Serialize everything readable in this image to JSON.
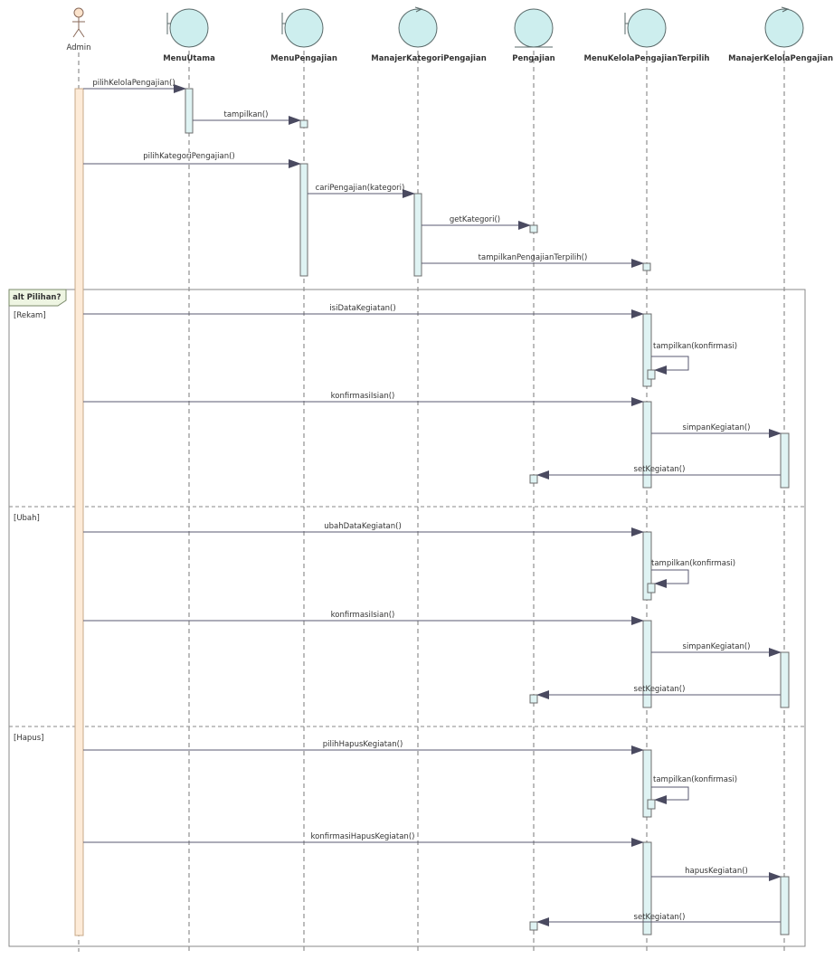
{
  "diagram": {
    "participants": [
      {
        "id": "admin",
        "label": "Admin",
        "kind": "actor"
      },
      {
        "id": "menuutama",
        "label": "MenuUtama",
        "kind": "boundary"
      },
      {
        "id": "menupengajian",
        "label": "MenuPengajian",
        "kind": "boundary"
      },
      {
        "id": "manajerkategori",
        "label": "ManajerKategoriPengajian",
        "kind": "control"
      },
      {
        "id": "pengajian",
        "label": "Pengajian",
        "kind": "entity"
      },
      {
        "id": "menukelola",
        "label": "MenuKelolaPengajianTerpilih",
        "kind": "boundary"
      },
      {
        "id": "manajerkelola",
        "label": "ManajerKelolaPengajian",
        "kind": "control"
      }
    ],
    "messages": [
      {
        "from": "admin",
        "to": "menuutama",
        "label": "pilihKelolaPengajian()"
      },
      {
        "from": "menuutama",
        "to": "menupengajian",
        "label": "tampilkan()"
      },
      {
        "from": "admin",
        "to": "menupengajian",
        "label": "pilihKategoriPengajian()"
      },
      {
        "from": "menupengajian",
        "to": "manajerkategori",
        "label": "cariPengajian(kategori)"
      },
      {
        "from": "manajerkategori",
        "to": "pengajian",
        "label": "getKategori()"
      },
      {
        "from": "manajerkategori",
        "to": "menukelola",
        "label": "tampilkanPengajianTerpilih()"
      },
      {
        "from": "admin",
        "to": "menukelola",
        "label": "isiDataKegiatan()"
      },
      {
        "from": "menukelola",
        "to": "menukelola",
        "label": "tampilkan(konfirmasi)"
      },
      {
        "from": "admin",
        "to": "menukelola",
        "label": "konfirmasiIsian()"
      },
      {
        "from": "menukelola",
        "to": "manajerkelola",
        "label": "simpanKegiatan()"
      },
      {
        "from": "manajerkelola",
        "to": "pengajian",
        "label": "setKegiatan()"
      },
      {
        "from": "admin",
        "to": "menukelola",
        "label": "ubahDataKegiatan()"
      },
      {
        "from": "menukelola",
        "to": "menukelola",
        "label": "tampilkan(konfirmasi)"
      },
      {
        "from": "admin",
        "to": "menukelola",
        "label": "konfirmasiIsian()"
      },
      {
        "from": "menukelola",
        "to": "manajerkelola",
        "label": "simpanKegiatan()"
      },
      {
        "from": "manajerkelola",
        "to": "pengajian",
        "label": "setKegiatan()"
      },
      {
        "from": "admin",
        "to": "menukelola",
        "label": "pilihHapusKegiatan()"
      },
      {
        "from": "menukelola",
        "to": "menukelola",
        "label": "tampilkan(konfirmasi)"
      },
      {
        "from": "admin",
        "to": "menukelola",
        "label": "konfirmasiHapusKegiatan()"
      },
      {
        "from": "menukelola",
        "to": "manajerkelola",
        "label": "hapusKegiatan()"
      },
      {
        "from": "manajerkelola",
        "to": "pengajian",
        "label": "setKegiatan()"
      }
    ],
    "fragment": {
      "label": "alt Pilihan?",
      "guards": [
        "[Rekam]",
        "[Ubah]",
        "[Hapus]"
      ]
    }
  },
  "colors": {
    "object_fill": "#cdeeee",
    "activation_fill": "#dff3f3",
    "actor_activation_fill": "#fdebd8",
    "fragment_tab_fill": "#eef5e2",
    "arrow": "#5a5a70"
  }
}
